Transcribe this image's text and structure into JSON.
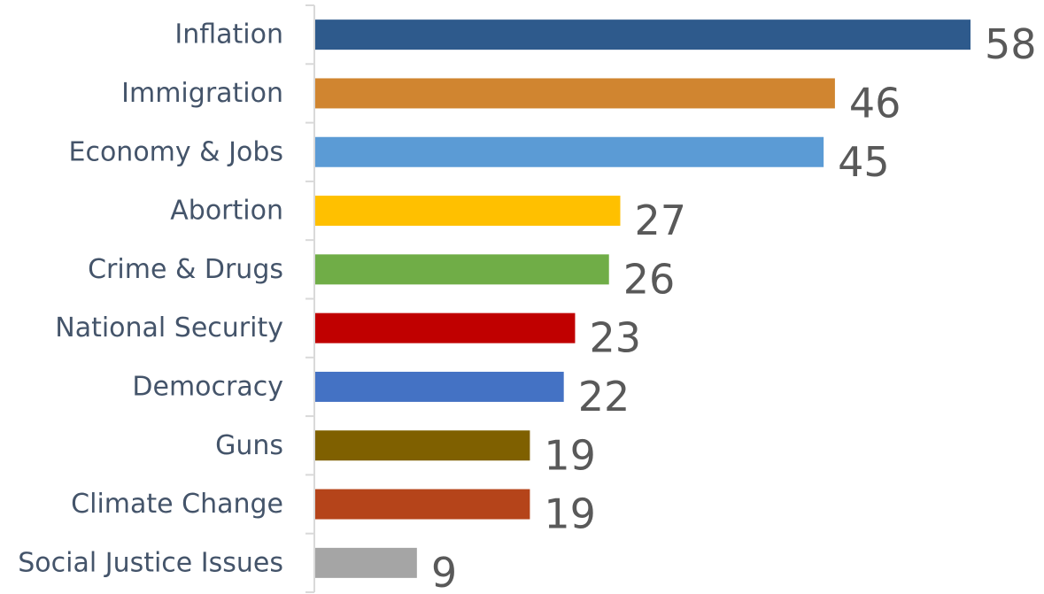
{
  "chart_data": {
    "type": "bar",
    "orientation": "horizontal",
    "categories": [
      "Inflation",
      "Immigration",
      "Economy & Jobs",
      "Abortion",
      "Crime & Drugs",
      "National Security",
      "Democracy",
      "Guns",
      "Climate Change",
      "Social Justice Issues"
    ],
    "values": [
      58,
      46,
      45,
      27,
      26,
      23,
      22,
      19,
      19,
      9
    ],
    "colors": [
      "#2e5a8c",
      "#d08530",
      "#5b9bd5",
      "#ffc000",
      "#70ad47",
      "#c00000",
      "#4472c4",
      "#7f6000",
      "#b5441a",
      "#a5a5a5"
    ],
    "title": "",
    "xlabel": "",
    "ylabel": "",
    "xlim": [
      0,
      58
    ],
    "grid": false,
    "legend": "none"
  }
}
